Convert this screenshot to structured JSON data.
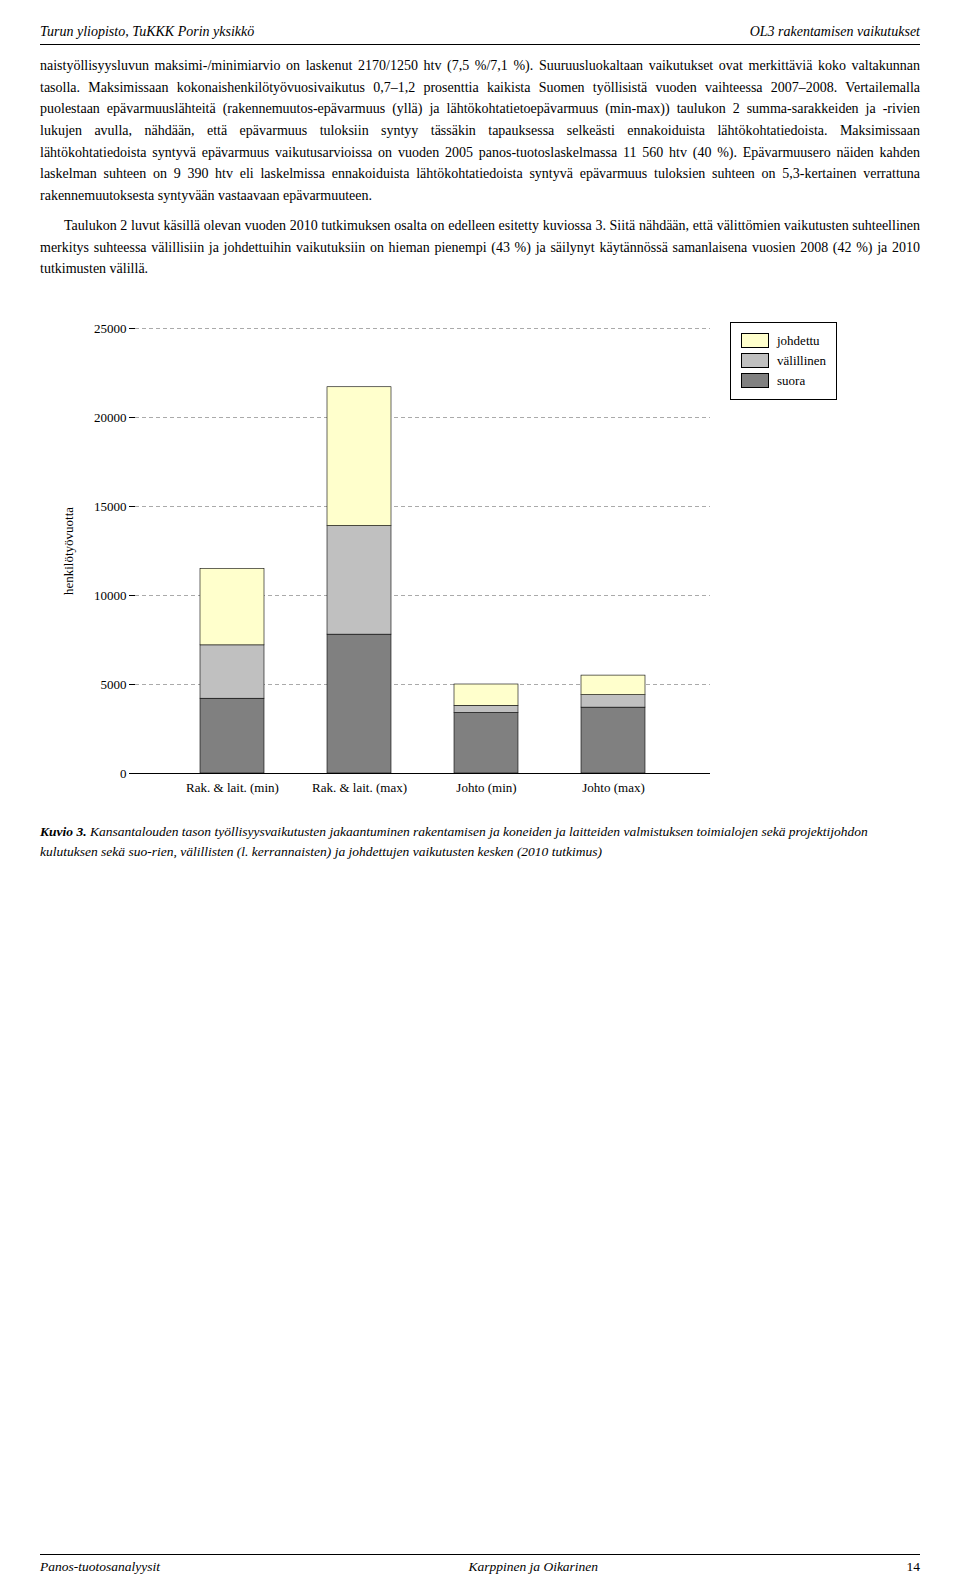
{
  "chart_data": {
    "type": "bar",
    "title": "Kuvio 3.",
    "subtitle": "Kansantalouden tason työllisyysvaikutusten jakaantuminen rakentamisen ja koneiden ja laitteiden valmistuksen toimialojen sekä projektijohdon kulutuksen sekä suo-rien, välillisten (l. kerrannaisten) ja johdettujen vaikutusten kesken (2010 tutkimus)",
    "annotations": [
      "Turun yliopisto, TuKKK Porin yksikkö",
      "OL3 rakentamisen vaikutukset",
      "naistyöllisyysluvun maksimi-/minimiarvio on laskenut 2170/1250 htv (7,5 %/7,1 %). Suuruusluokaltaan vaikutukset ovat merkittäviä koko valtakunnan tasolla. Maksimissaan kokonaishenkilötyövuosivaikutus 0,7–1,2 prosenttia kaikista Suomen työllisistä vuoden vaihteessa 2007–2008. Vertailemalla puolestaan epävarmuuslähteitä (rakennemuutos-epävarmuus (yllä) ja lähtökohtatietoepävarmuus (min-max)) taulukon 2 summa-sarakkeiden ja -rivien lukujen avulla, nähdään, että epävarmuus tuloksiin syntyy tässäkin tapauksessa selkeästi ennakoiduista lähtökohtatiedoista. Maksimissaan lähtökohtatiedoista syntyvä epävarmuus vaikutusarvioissa on vuoden 2005 panos-tuotoslaskelmassa 11 560 htv (40 %). Epävarmuusero näiden kahden laskelman suhteen on 9 390 htv eli laskelmissa ennakoiduista lähtökohtatiedoista syntyvä epävarmuus tuloksien suhteen on 5,3-kertainen verrattuna rakennemuutoksesta syntyvään vastaavaan epävarmuuteen.",
      "Taulukon 2 luvut käsillä olevan vuoden 2010 tutkimuksen osalta on edelleen esitetty kuviossa 3.  Siitä nähdään, että välittömien vaikutusten suhteellinen merkitys suhteessa välillisiin ja johdettuihin vaikutuksiin on hieman pienempi (43 %) ja säilynyt käytännössä samanlaisena vuosien 2008 (42 %) ja 2010 tutkimusten välillä.",
      "Panos-tuotosanalyysit",
      "Karppinen ja Oikarinen",
      "14"
    ],
    "categories": [
      "Rak. & lait. (min)",
      "Rak. & lait. (max)",
      "Johto (min)",
      "Johto (max)"
    ],
    "series": [
      {
        "name": "suora",
        "color": "#808080",
        "values": [
          4200,
          7800,
          3400,
          3700
        ]
      },
      {
        "name": "välillinen",
        "color": "#c0c0c0",
        "values": [
          3000,
          6100,
          400,
          700
        ]
      },
      {
        "name": "johdettu",
        "color": "#ffffcc",
        "values": [
          4300,
          7800,
          1200,
          1100
        ]
      }
    ],
    "ylabel": "henkilötyövuotta",
    "ylim": [
      0,
      25000
    ],
    "yticks": [
      0,
      5000,
      10000,
      15000,
      20000,
      25000
    ],
    "stacked": true,
    "grid": true,
    "legend": "upper right"
  }
}
